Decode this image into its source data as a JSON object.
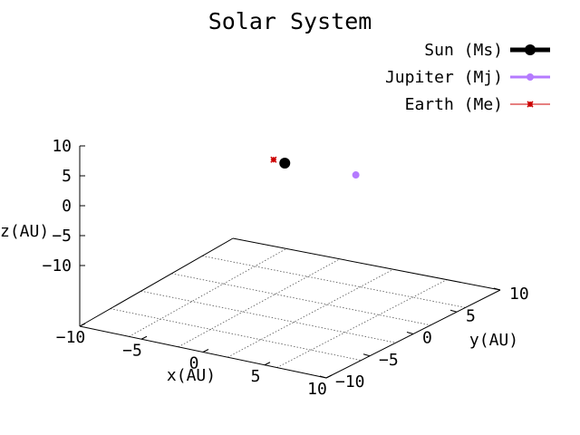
{
  "chart_data": {
    "type": "scatter",
    "projection": "3d",
    "title": "Solar System",
    "xlabel": "x(AU)",
    "ylabel": "y(AU)",
    "zlabel": "z(AU)",
    "xlim": [
      -10,
      10
    ],
    "ylim": [
      -10,
      10
    ],
    "zlim": [
      -10,
      10
    ],
    "xticks": [
      "−10",
      "−5",
      "0",
      "5",
      "10"
    ],
    "yticks": [
      "−10",
      "−5",
      "0",
      "5",
      "10"
    ],
    "zticks": [
      "10",
      "5",
      "0",
      "−5",
      "−10"
    ],
    "grid": true,
    "legend_position": "top-right",
    "series": [
      {
        "name": "Sun (Ms)",
        "color": "#000000",
        "marker": "large-dot",
        "points": [
          [
            0,
            0,
            0
          ]
        ]
      },
      {
        "name": "Jupiter (Mj)",
        "color": "#b57bff",
        "marker": "dot",
        "points": [
          [
            5.2,
            0.5,
            -0.1
          ]
        ]
      },
      {
        "name": "Earth (Me)",
        "color": "#cc0000",
        "marker": "star",
        "points": [
          [
            -1.0,
            0.2,
            0.0
          ]
        ]
      }
    ]
  }
}
